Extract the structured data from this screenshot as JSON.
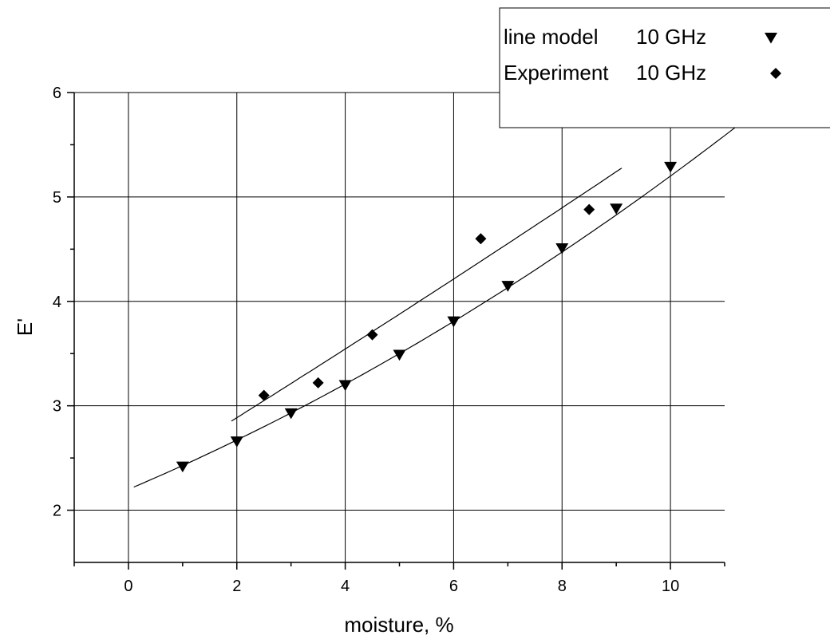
{
  "chart_data": {
    "type": "scatter",
    "xlabel": "moisture, %",
    "ylabel": "E'",
    "xlim": [
      -1,
      11
    ],
    "ylim": [
      1.5,
      6
    ],
    "xticks": [
      0,
      2,
      4,
      6,
      8,
      10
    ],
    "yticks": [
      2,
      3,
      4,
      5,
      6
    ],
    "grid": true,
    "legend_position": "top-right",
    "series": [
      {
        "name": "line model",
        "frequency": "10 GHz",
        "marker": "triangle-down",
        "points": [
          {
            "x": 1,
            "y": 2.42
          },
          {
            "x": 2,
            "y": 2.66
          },
          {
            "x": 3,
            "y": 2.93
          },
          {
            "x": 4,
            "y": 3.2
          },
          {
            "x": 5,
            "y": 3.49
          },
          {
            "x": 6,
            "y": 3.81
          },
          {
            "x": 7,
            "y": 4.15
          },
          {
            "x": 8,
            "y": 4.51
          },
          {
            "x": 9,
            "y": 4.89
          },
          {
            "x": 10,
            "y": 5.29
          }
        ],
        "fit": {
          "x_start": 0.1,
          "x_end": 11.4,
          "coefficients": [
            2.2,
            0.22,
            0.008
          ]
        }
      },
      {
        "name": "Experiment",
        "frequency": "10 GHz",
        "marker": "diamond",
        "points": [
          {
            "x": 2.5,
            "y": 3.1
          },
          {
            "x": 3.5,
            "y": 3.22
          },
          {
            "x": 4.5,
            "y": 3.68
          },
          {
            "x": 6.5,
            "y": 4.6
          },
          {
            "x": 8.5,
            "y": 4.88
          }
        ],
        "fit": {
          "x_start": 1.9,
          "x_end": 9.1,
          "coefficients": [
            2.24,
            0.32,
            0.0015
          ]
        }
      }
    ]
  }
}
